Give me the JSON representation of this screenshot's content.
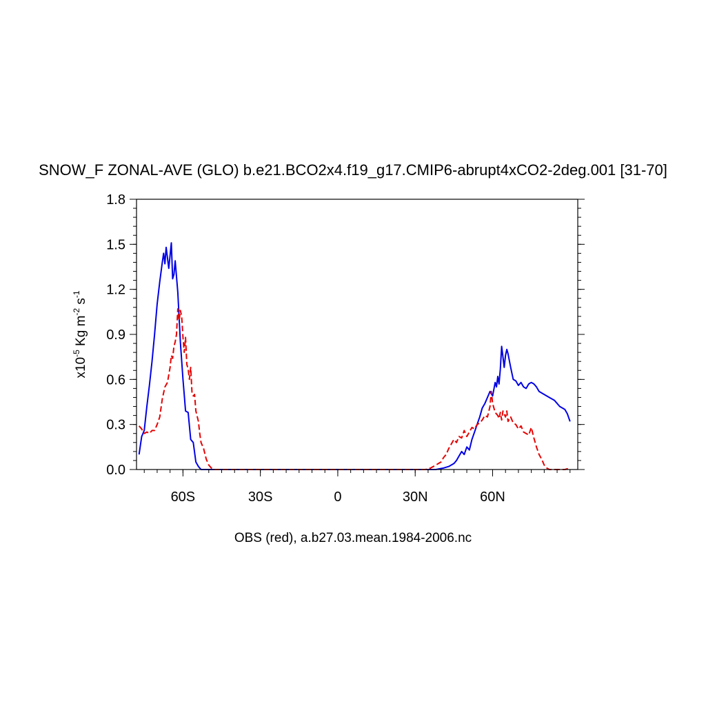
{
  "chart_data": {
    "type": "line",
    "title": "SNOW_F ZONAL-AVE (GLO) b.e21.BCO2x4.f19_g17.CMIP6-abrupt4xCO2-2deg.001 [31-70]",
    "xlabel": "OBS (red), a.b27.03.mean.1984-2006.nc",
    "ylabel": {
      "prefix": "x10",
      "exp1": "-5",
      "mid": " Kg m",
      "exp2": "-2",
      "mid2": " s",
      "exp3": "-1"
    },
    "xlim": [
      -78,
      93
    ],
    "ylim": [
      0,
      1.8
    ],
    "xticks": [
      {
        "value": -60,
        "label": "60S"
      },
      {
        "value": -30,
        "label": "30S"
      },
      {
        "value": 0,
        "label": "0"
      },
      {
        "value": 30,
        "label": "30N"
      },
      {
        "value": 60,
        "label": "60N"
      }
    ],
    "yticks": [
      {
        "value": 0.0,
        "label": "0.0"
      },
      {
        "value": 0.3,
        "label": "0.3"
      },
      {
        "value": 0.6,
        "label": "0.6"
      },
      {
        "value": 0.9,
        "label": "0.9"
      },
      {
        "value": 1.2,
        "label": "1.2"
      },
      {
        "value": 1.5,
        "label": "1.5"
      },
      {
        "value": 1.8,
        "label": "1.8"
      }
    ],
    "grid": false,
    "series": [
      {
        "color": "#0000e6",
        "dash": "solid",
        "points": [
          [
            -77,
            0.1
          ],
          [
            -76,
            0.22
          ],
          [
            -75,
            0.26
          ],
          [
            -74,
            0.42
          ],
          [
            -73,
            0.56
          ],
          [
            -72,
            0.72
          ],
          [
            -71,
            0.9
          ],
          [
            -70,
            1.1
          ],
          [
            -69,
            1.25
          ],
          [
            -68,
            1.38
          ],
          [
            -67.5,
            1.44
          ],
          [
            -67,
            1.37
          ],
          [
            -66.5,
            1.48
          ],
          [
            -65.5,
            1.34
          ],
          [
            -64.5,
            1.51
          ],
          [
            -64,
            1.27
          ],
          [
            -63.5,
            1.3
          ],
          [
            -63,
            1.39
          ],
          [
            -62,
            1.18
          ],
          [
            -61,
            0.85
          ],
          [
            -60,
            0.6
          ],
          [
            -59.5,
            0.5
          ],
          [
            -59,
            0.39
          ],
          [
            -58,
            0.38
          ],
          [
            -57,
            0.2
          ],
          [
            -56,
            0.18
          ],
          [
            -55,
            0.05
          ],
          [
            -54,
            0.02
          ],
          [
            -53,
            0.0
          ],
          [
            -51,
            0.0
          ],
          [
            0,
            0.0
          ],
          [
            38,
            0.0
          ],
          [
            41,
            0.01
          ],
          [
            43,
            0.02
          ],
          [
            45,
            0.04
          ],
          [
            46,
            0.06
          ],
          [
            47,
            0.09
          ],
          [
            48,
            0.12
          ],
          [
            49,
            0.1
          ],
          [
            50,
            0.15
          ],
          [
            51,
            0.13
          ],
          [
            52,
            0.2
          ],
          [
            53,
            0.25
          ],
          [
            54,
            0.3
          ],
          [
            55,
            0.35
          ],
          [
            56,
            0.41
          ],
          [
            57,
            0.44
          ],
          [
            58,
            0.48
          ],
          [
            59,
            0.52
          ],
          [
            60,
            0.49
          ],
          [
            61,
            0.58
          ],
          [
            61.5,
            0.55
          ],
          [
            62,
            0.62
          ],
          [
            62.5,
            0.57
          ],
          [
            63,
            0.67
          ],
          [
            63.5,
            0.82
          ],
          [
            64,
            0.75
          ],
          [
            64.5,
            0.68
          ],
          [
            65,
            0.76
          ],
          [
            65.5,
            0.8
          ],
          [
            66,
            0.77
          ],
          [
            67,
            0.68
          ],
          [
            68,
            0.6
          ],
          [
            69,
            0.59
          ],
          [
            70,
            0.56
          ],
          [
            71,
            0.58
          ],
          [
            72,
            0.55
          ],
          [
            73,
            0.54
          ],
          [
            74,
            0.57
          ],
          [
            75,
            0.58
          ],
          [
            76,
            0.57
          ],
          [
            77,
            0.55
          ],
          [
            78,
            0.52
          ],
          [
            80,
            0.5
          ],
          [
            82,
            0.48
          ],
          [
            84,
            0.46
          ],
          [
            86,
            0.42
          ],
          [
            88,
            0.4
          ],
          [
            89,
            0.37
          ],
          [
            90,
            0.32
          ]
        ]
      },
      {
        "color": "#e60000",
        "dash": "dashed",
        "points": [
          [
            -77,
            0.29
          ],
          [
            -76,
            0.27
          ],
          [
            -75,
            0.24
          ],
          [
            -74,
            0.25
          ],
          [
            -73,
            0.24
          ],
          [
            -72,
            0.26
          ],
          [
            -71,
            0.26
          ],
          [
            -70,
            0.3
          ],
          [
            -69,
            0.35
          ],
          [
            -68,
            0.47
          ],
          [
            -67,
            0.55
          ],
          [
            -66,
            0.58
          ],
          [
            -65,
            0.68
          ],
          [
            -64.5,
            0.76
          ],
          [
            -64,
            0.74
          ],
          [
            -63.5,
            0.82
          ],
          [
            -63,
            0.85
          ],
          [
            -62.5,
            0.9
          ],
          [
            -62,
            1.07
          ],
          [
            -61.5,
            0.99
          ],
          [
            -61,
            1.06
          ],
          [
            -60.5,
            1.02
          ],
          [
            -60,
            0.88
          ],
          [
            -59.5,
            0.78
          ],
          [
            -59,
            0.88
          ],
          [
            -58.5,
            0.7
          ],
          [
            -58,
            0.67
          ],
          [
            -57.5,
            0.6
          ],
          [
            -57,
            0.68
          ],
          [
            -56.5,
            0.51
          ],
          [
            -56,
            0.49
          ],
          [
            -55.5,
            0.5
          ],
          [
            -55,
            0.39
          ],
          [
            -54,
            0.32
          ],
          [
            -53.5,
            0.24
          ],
          [
            -53,
            0.18
          ],
          [
            -52,
            0.14
          ],
          [
            -51,
            0.07
          ],
          [
            -50,
            0.03
          ],
          [
            -49,
            0.01
          ],
          [
            -48,
            0.0
          ],
          [
            0,
            0.0
          ],
          [
            34,
            0.0
          ],
          [
            36,
            0.01
          ],
          [
            38,
            0.03
          ],
          [
            40,
            0.05
          ],
          [
            41,
            0.08
          ],
          [
            42,
            0.1
          ],
          [
            43,
            0.14
          ],
          [
            44,
            0.17
          ],
          [
            45,
            0.2
          ],
          [
            46,
            0.18
          ],
          [
            47,
            0.22
          ],
          [
            48,
            0.21
          ],
          [
            49,
            0.26
          ],
          [
            50,
            0.22
          ],
          [
            51,
            0.25
          ],
          [
            52,
            0.28
          ],
          [
            53,
            0.27
          ],
          [
            54,
            0.3
          ],
          [
            55,
            0.31
          ],
          [
            56,
            0.33
          ],
          [
            57,
            0.36
          ],
          [
            58,
            0.35
          ],
          [
            59,
            0.42
          ],
          [
            59.5,
            0.52
          ],
          [
            60,
            0.44
          ],
          [
            61,
            0.38
          ],
          [
            62,
            0.36
          ],
          [
            62.5,
            0.34
          ],
          [
            63,
            0.38
          ],
          [
            63.5,
            0.33
          ],
          [
            64,
            0.39
          ],
          [
            65,
            0.35
          ],
          [
            65.5,
            0.39
          ],
          [
            66,
            0.32
          ],
          [
            67,
            0.35
          ],
          [
            68,
            0.31
          ],
          [
            69,
            0.3
          ],
          [
            70,
            0.27
          ],
          [
            71,
            0.29
          ],
          [
            72,
            0.25
          ],
          [
            73,
            0.24
          ],
          [
            74,
            0.23
          ],
          [
            75,
            0.28
          ],
          [
            76,
            0.21
          ],
          [
            77,
            0.15
          ],
          [
            78,
            0.1
          ],
          [
            79,
            0.07
          ],
          [
            80,
            0.03
          ],
          [
            81,
            0.01
          ],
          [
            82,
            0.0
          ],
          [
            88,
            0.0
          ],
          [
            90,
            0.01
          ]
        ]
      }
    ]
  }
}
